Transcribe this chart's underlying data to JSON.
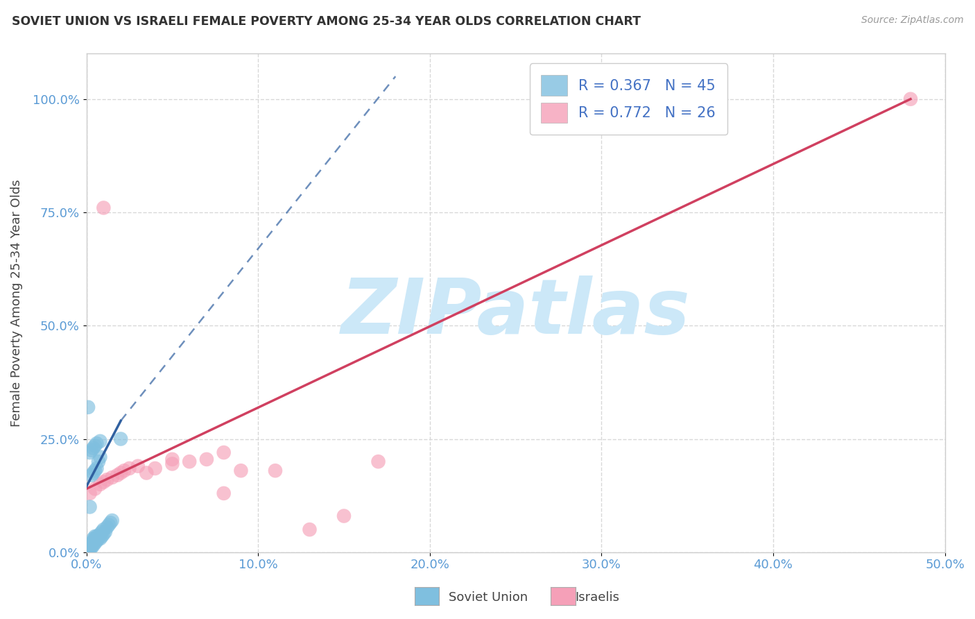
{
  "title": "SOVIET UNION VS ISRAELI FEMALE POVERTY AMONG 25-34 YEAR OLDS CORRELATION CHART",
  "source": "Source: ZipAtlas.com",
  "ylabel": "Female Poverty Among 25-34 Year Olds",
  "xlim": [
    0,
    0.5
  ],
  "ylim": [
    0,
    1.1
  ],
  "xtick_vals": [
    0.0,
    0.1,
    0.2,
    0.3,
    0.4,
    0.5
  ],
  "ytick_vals": [
    0.0,
    0.25,
    0.5,
    0.75,
    1.0
  ],
  "xtick_labels": [
    "0.0%",
    "10.0%",
    "20.0%",
    "30.0%",
    "40.0%",
    "50.0%"
  ],
  "ytick_labels": [
    "0.0%",
    "25.0%",
    "50.0%",
    "75.0%",
    "100.0%"
  ],
  "soviet_R": 0.367,
  "soviet_N": 45,
  "israeli_R": 0.772,
  "israeli_N": 26,
  "soviet_color": "#7fbfdf",
  "israeli_color": "#f5a0b8",
  "soviet_line_color": "#3060a0",
  "israeli_line_color": "#d04060",
  "legend_text_color": "#4472c4",
  "watermark": "ZIPatlas",
  "watermark_color": "#cce8f8",
  "background_color": "#ffffff",
  "grid_color": "#d8d8d8",
  "tick_color": "#5b9bd5",
  "soviet_x": [
    0.001,
    0.002,
    0.002,
    0.003,
    0.003,
    0.003,
    0.004,
    0.004,
    0.004,
    0.004,
    0.005,
    0.005,
    0.005,
    0.005,
    0.006,
    0.006,
    0.006,
    0.007,
    0.007,
    0.008,
    0.008,
    0.009,
    0.009,
    0.01,
    0.01,
    0.011,
    0.012,
    0.013,
    0.014,
    0.015,
    0.003,
    0.004,
    0.005,
    0.006,
    0.007,
    0.008,
    0.002,
    0.003,
    0.004,
    0.005,
    0.006,
    0.008,
    0.001,
    0.002,
    0.02
  ],
  "soviet_y": [
    0.0,
    0.005,
    0.01,
    0.015,
    0.01,
    0.02,
    0.015,
    0.02,
    0.025,
    0.03,
    0.02,
    0.025,
    0.03,
    0.035,
    0.025,
    0.03,
    0.035,
    0.03,
    0.035,
    0.03,
    0.04,
    0.035,
    0.045,
    0.04,
    0.05,
    0.045,
    0.055,
    0.06,
    0.065,
    0.07,
    0.17,
    0.175,
    0.18,
    0.185,
    0.2,
    0.21,
    0.22,
    0.225,
    0.23,
    0.235,
    0.24,
    0.245,
    0.32,
    0.1,
    0.25
  ],
  "israeli_x": [
    0.002,
    0.005,
    0.008,
    0.01,
    0.012,
    0.015,
    0.018,
    0.02,
    0.022,
    0.025,
    0.03,
    0.035,
    0.04,
    0.05,
    0.06,
    0.07,
    0.08,
    0.09,
    0.11,
    0.13,
    0.15,
    0.17,
    0.05,
    0.08,
    0.48,
    0.01
  ],
  "israeli_y": [
    0.13,
    0.14,
    0.15,
    0.155,
    0.16,
    0.165,
    0.17,
    0.175,
    0.18,
    0.185,
    0.19,
    0.175,
    0.185,
    0.195,
    0.2,
    0.205,
    0.13,
    0.18,
    0.18,
    0.05,
    0.08,
    0.2,
    0.205,
    0.22,
    1.0,
    0.76
  ],
  "sov_line_x0": 0.0,
  "sov_line_y0": 0.145,
  "sov_line_x1": 0.02,
  "sov_line_y1": 0.29,
  "sov_line_dash_x0": 0.02,
  "sov_line_dash_y0": 0.29,
  "sov_line_dash_x1": 0.18,
  "sov_line_dash_y1": 1.05,
  "isr_line_x0": 0.0,
  "isr_line_y0": 0.14,
  "isr_line_x1": 0.48,
  "isr_line_y1": 1.0
}
